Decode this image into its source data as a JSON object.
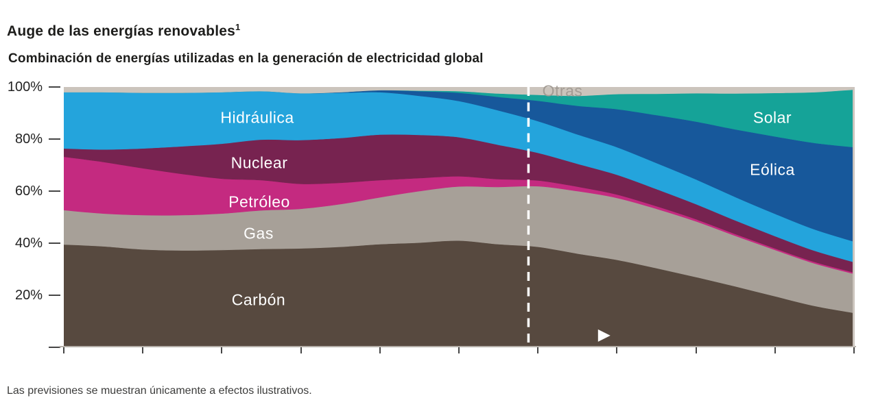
{
  "header": {
    "title": "Auge de las energías renovables",
    "title_superscript": "1",
    "subtitle": "Combinación de energías utilizadas en la generación de electricidad global"
  },
  "footnote": "Las previsiones se muestran únicamente a efectos ilustrativos.",
  "colors": {
    "axis_line": "#b4aea7",
    "tick": "#454545",
    "divider": "#ffffff",
    "title_text": "#1d1d1b",
    "footnote_text": "#3c3c3b",
    "otras_label_text": "#a39c95"
  },
  "icons": {
    "forecast_marker": "play-triangle"
  },
  "chart_data": {
    "type": "area",
    "stacked": true,
    "normalized_percent": true,
    "title": "Combinación de energías utilizadas en la generación de electricidad global",
    "xlabel": "",
    "ylabel": "",
    "y_axis": {
      "ticks": [
        "100%",
        "80%",
        "60%",
        "40%",
        "20%"
      ],
      "range": [
        0,
        100
      ],
      "grid": false
    },
    "x_axis": {
      "tick_count": 11,
      "labels": [],
      "spacing": "uniform"
    },
    "forecast_divider_frac": 0.588,
    "forecast_marker": {
      "x_frac": 0.683,
      "y_frac": 0.955
    },
    "legend_position": "in-chart-labels",
    "series": [
      {
        "name": "carbon",
        "label": "Carbón",
        "color": "#57493F",
        "values": [
          39.5,
          38.8,
          37.6,
          37.2,
          37.4,
          37.8,
          38.0,
          38.6,
          39.6,
          40.2,
          41.0,
          39.6,
          38.6,
          36.0,
          33.6,
          30.4,
          27.0,
          23.4,
          19.6,
          15.9,
          13.2
        ]
      },
      {
        "name": "gas",
        "label": "Gas",
        "color": "#A7A098",
        "values": [
          13.2,
          12.6,
          13.2,
          13.6,
          14.0,
          14.8,
          15.2,
          16.4,
          18.0,
          19.8,
          20.8,
          22.0,
          23.3,
          24.0,
          23.8,
          22.8,
          21.4,
          19.4,
          17.8,
          16.3,
          15.0
        ]
      },
      {
        "name": "petroleo",
        "label": "Petróleo",
        "color": "#C42A80",
        "values": [
          20.5,
          19.8,
          18.0,
          15.8,
          13.4,
          11.6,
          9.6,
          8.2,
          6.6,
          5.0,
          3.9,
          3.0,
          2.2,
          1.7,
          1.3,
          1.0,
          0.8,
          0.7,
          0.6,
          0.6,
          0.5
        ]
      },
      {
        "name": "nuclear",
        "label": "Nuclear",
        "color": "#772350",
        "values": [
          3.2,
          4.8,
          7.6,
          10.6,
          13.4,
          15.6,
          16.8,
          17.2,
          17.5,
          16.6,
          15.0,
          13.2,
          10.6,
          8.8,
          7.6,
          6.6,
          5.8,
          5.2,
          4.7,
          4.3,
          4.0
        ]
      },
      {
        "name": "hidraulica",
        "label": "Hidráulica",
        "color": "#24A4DC",
        "values": [
          21.6,
          22.0,
          21.4,
          20.6,
          19.8,
          18.6,
          18.0,
          17.4,
          16.3,
          15.0,
          13.9,
          13.2,
          12.2,
          11.3,
          10.6,
          10.0,
          9.5,
          9.0,
          8.6,
          8.2,
          7.9
        ]
      },
      {
        "name": "eolica",
        "label": "Eólica",
        "color": "#17589B",
        "values": [
          0,
          0,
          0,
          0,
          0,
          0,
          0,
          0.2,
          0.8,
          1.8,
          3.2,
          5.2,
          7.8,
          11.0,
          14.6,
          18.4,
          22.2,
          26.0,
          29.7,
          33.2,
          36.3
        ]
      },
      {
        "name": "solar",
        "label": "Solar",
        "color": "#15A398",
        "values": [
          0,
          0,
          0,
          0,
          0,
          0,
          0,
          0,
          0,
          0.2,
          0.6,
          1.3,
          2.3,
          3.8,
          5.8,
          8.2,
          10.9,
          13.8,
          16.7,
          19.5,
          22.1
        ]
      },
      {
        "name": "otras",
        "label": "Otras",
        "color": "#CBC4BC",
        "values": [
          2.0,
          2.0,
          2.2,
          2.2,
          2.0,
          1.6,
          2.4,
          2.0,
          1.2,
          1.4,
          1.6,
          2.5,
          3.0,
          3.4,
          2.7,
          2.6,
          2.4,
          2.5,
          2.3,
          2.0,
          1.0
        ]
      }
    ]
  }
}
